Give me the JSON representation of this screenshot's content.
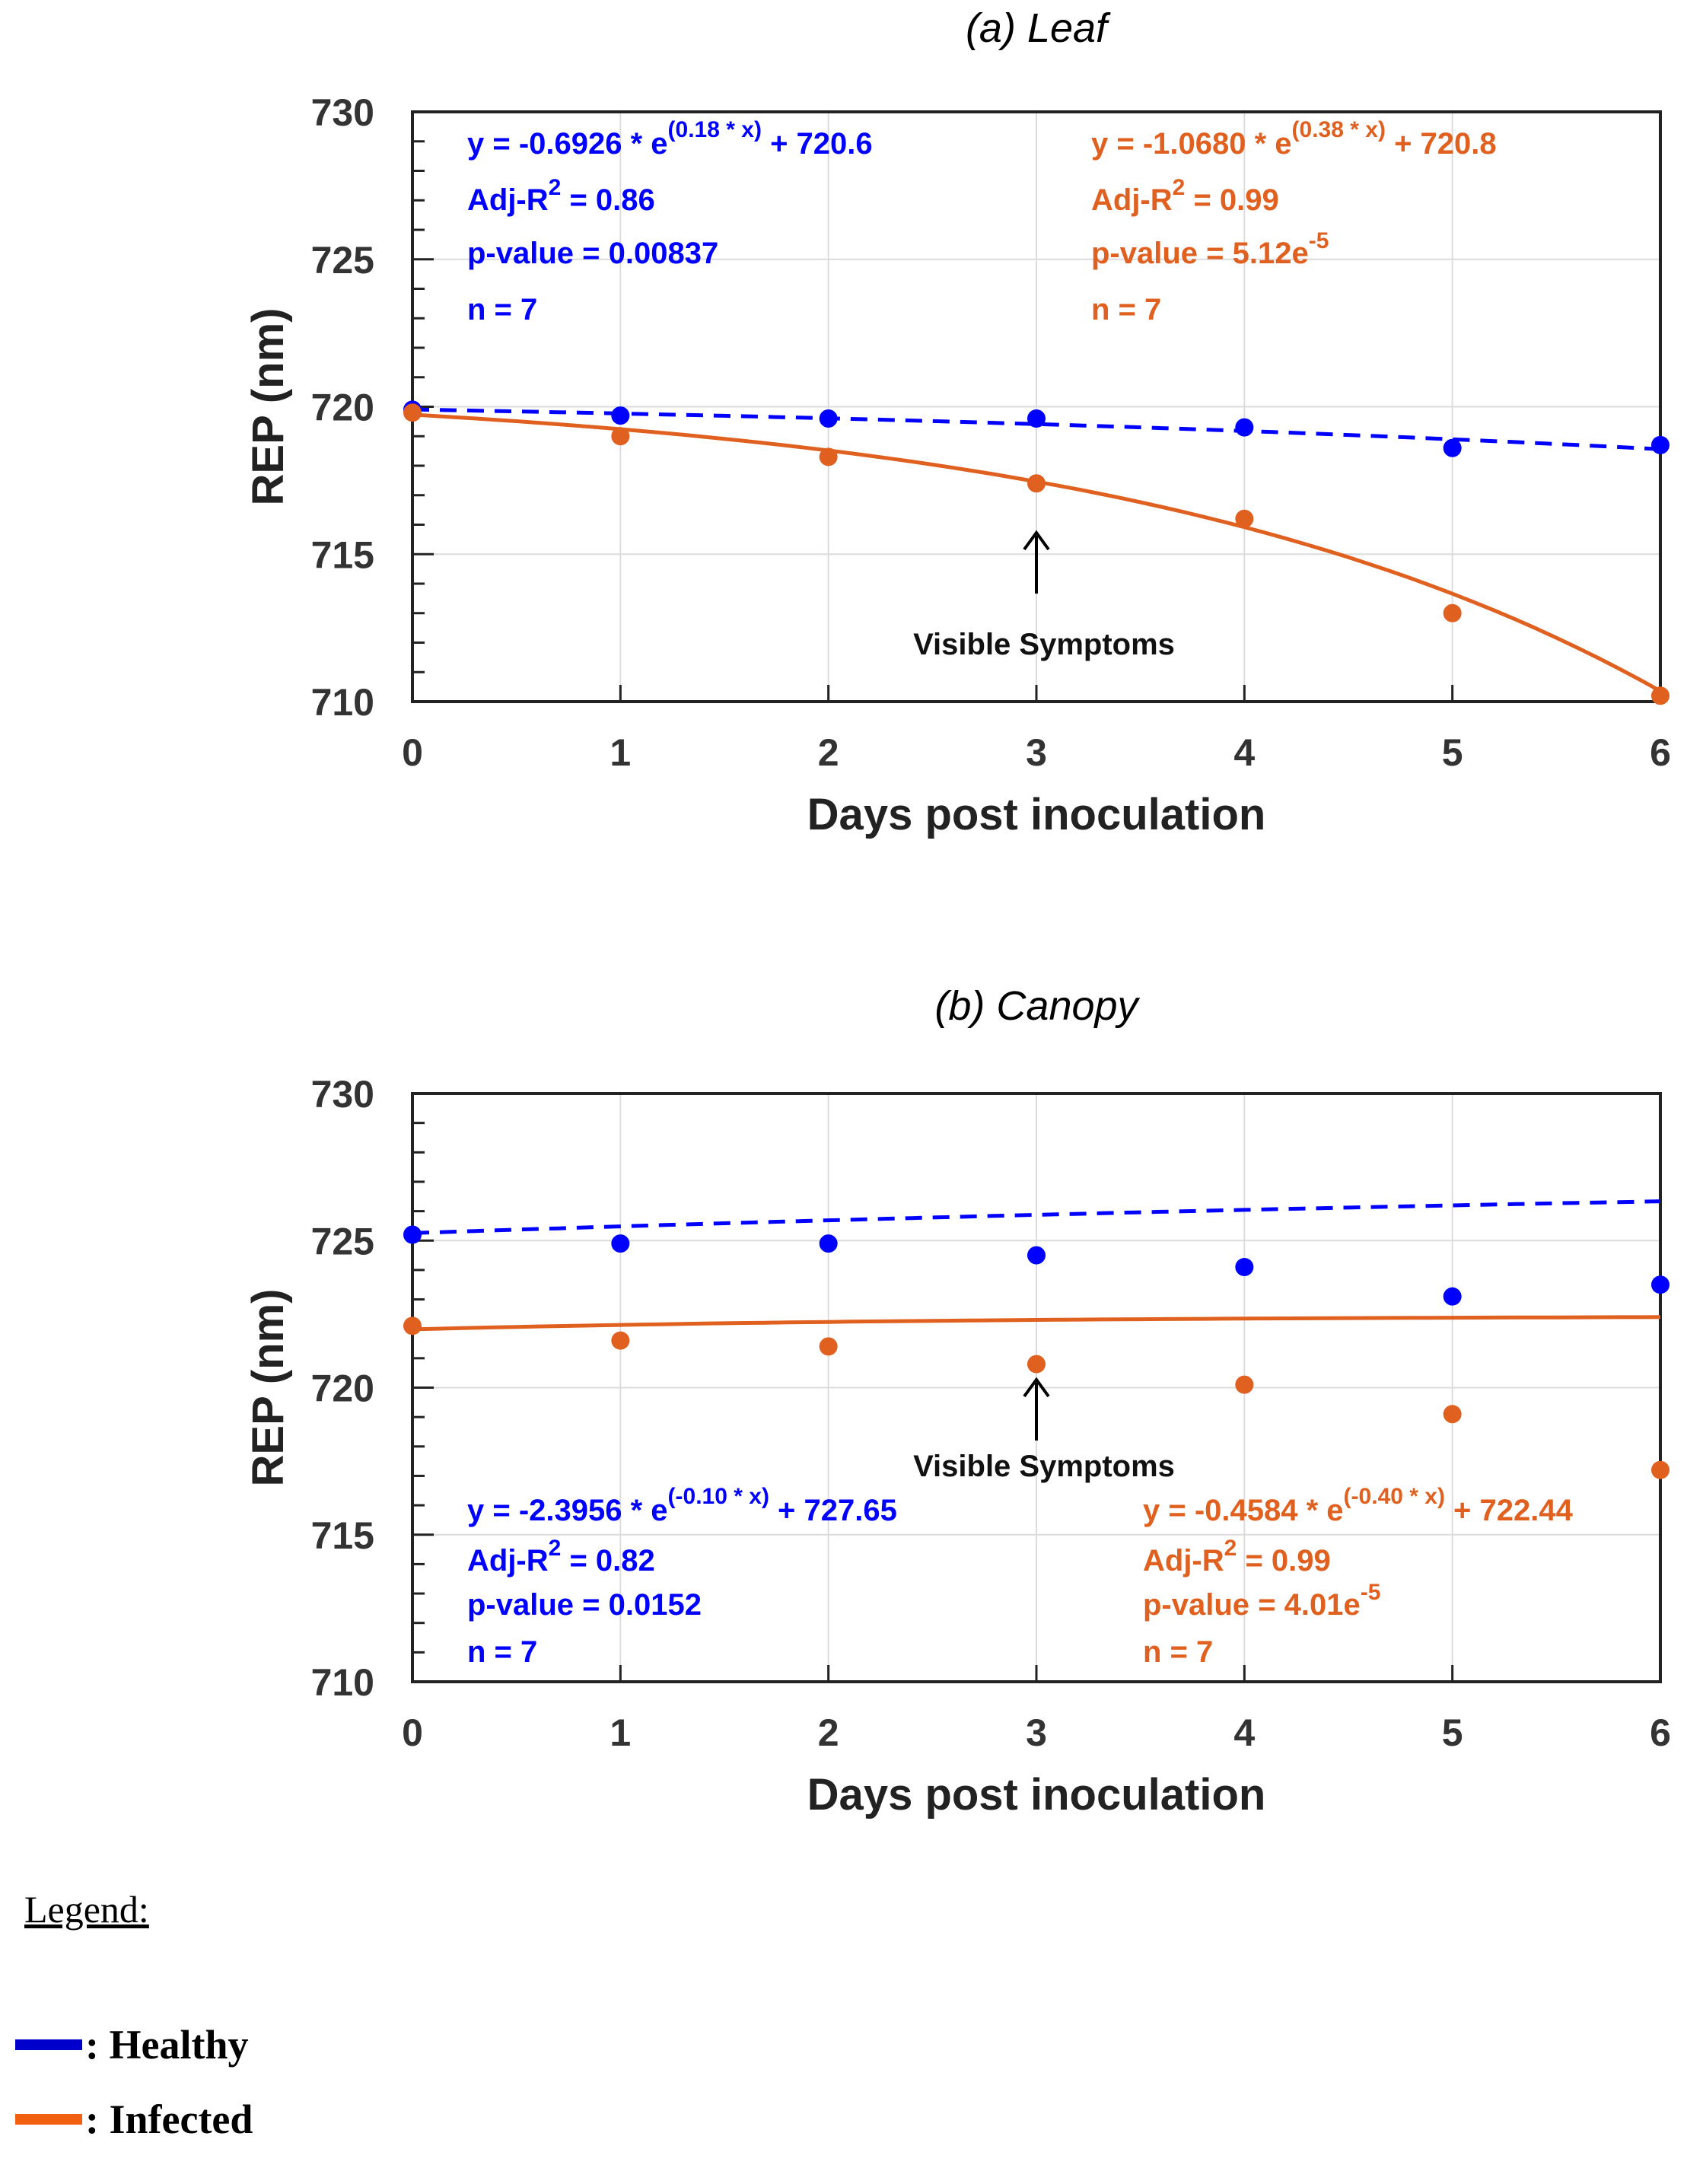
{
  "chart_data": [
    {
      "type": "line",
      "title": "(a)  Leaf",
      "xlabel": "Days post inoculation",
      "ylabel": "REP (nm)",
      "xlim": [
        0,
        6
      ],
      "ylim": [
        710,
        730
      ],
      "x_ticks": [
        0,
        1,
        2,
        3,
        4,
        5,
        6
      ],
      "y_ticks": [
        710,
        715,
        720,
        725,
        730
      ],
      "grid": true,
      "series": [
        {
          "name": "Healthy",
          "color": "#0000ff",
          "style": "dashed",
          "points": [
            719.9,
            719.7,
            719.6,
            719.6,
            719.3,
            718.6,
            718.7
          ],
          "fit": {
            "a": -0.6926,
            "b": 0.18,
            "c": 720.6
          },
          "annotation": [
            "y = -0.6926 * e",
            "(0.18 * x)",
            " + 720.6",
            "Adj-R",
            "2",
            " = 0.86",
            "p-value = 0.00837",
            "n = 7"
          ]
        },
        {
          "name": "Infected",
          "color": "#e06020",
          "style": "solid",
          "points": [
            719.8,
            719.0,
            718.3,
            717.4,
            716.2,
            713.0,
            710.2
          ],
          "fit": {
            "a": -1.068,
            "b": 0.38,
            "c": 720.8
          },
          "annotation": [
            "y = -1.0680 * e",
            "(0.38 * x)",
            " + 720.8",
            "Adj-R",
            "2",
            " = 0.99",
            "p-value = 5.12e",
            "-5",
            "n = 7"
          ]
        }
      ],
      "arrow": {
        "x": 3,
        "label": "Visible Symptoms"
      }
    },
    {
      "type": "line",
      "title": "(b)  Canopy",
      "xlabel": "Days post inoculation",
      "ylabel": "REP (nm)",
      "xlim": [
        0,
        6
      ],
      "ylim": [
        710,
        730
      ],
      "x_ticks": [
        0,
        1,
        2,
        3,
        4,
        5,
        6
      ],
      "y_ticks": [
        710,
        715,
        720,
        725,
        730
      ],
      "grid": true,
      "series": [
        {
          "name": "Healthy",
          "color": "#0000ff",
          "style": "dashed",
          "points": [
            725.2,
            724.9,
            724.9,
            724.5,
            724.1,
            723.1,
            723.5
          ],
          "fit": {
            "a": -2.3956,
            "b": -0.1,
            "c": 727.65
          },
          "annotation": [
            "y = -2.3956 * e",
            "(-0.10 * x)",
            " + 727.65",
            "Adj-R",
            "2",
            " = 0.82",
            "p-value = 0.0152",
            "n = 7"
          ]
        },
        {
          "name": "Infected",
          "color": "#e06020",
          "style": "solid",
          "points": [
            722.1,
            721.6,
            721.4,
            720.8,
            720.1,
            719.1,
            717.2
          ],
          "fit": {
            "a": -0.4584,
            "b": -0.4,
            "c": 722.44
          },
          "annotation": [
            "y = -0.4584 * e",
            "(-0.40 * x)",
            " + 722.44",
            "Adj-R",
            "2",
            " = 0.99",
            "p-value = 4.01e",
            "-5",
            "n = 7"
          ]
        }
      ],
      "arrow": {
        "x": 3,
        "label": "Visible Symptoms"
      }
    }
  ],
  "legend": {
    "title": "Legend:",
    "items": [
      {
        "label": ": Healthy",
        "color": "#0000cc"
      },
      {
        "label": ": Infected",
        "color": "#f06010"
      }
    ]
  }
}
